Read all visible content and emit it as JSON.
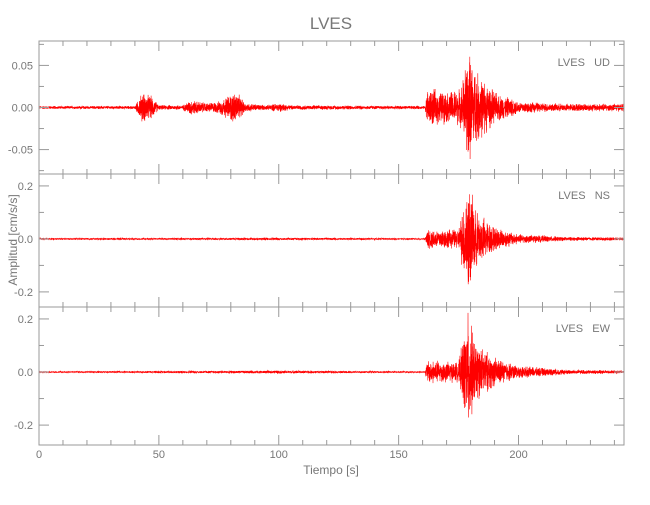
{
  "chart_data": {
    "type": "line",
    "title": "LVES",
    "xlabel": "Tiempo [s]",
    "ylabel": "Amplitud [cm/s/s]",
    "xlim": [
      0,
      244
    ],
    "xticks": [
      0,
      50,
      100,
      150,
      200
    ],
    "xtick_labels": [
      "0",
      "50",
      "100",
      "150",
      "200"
    ],
    "grid": false,
    "line_color": "#ff0000",
    "panels": [
      {
        "label": "LVES   UD",
        "ylim": [
          -0.079,
          0.079
        ],
        "yticks": [
          -0.05,
          0.0,
          0.05
        ],
        "ytick_labels": [
          "-0.05",
          "0.00",
          "0.05"
        ],
        "minor_step": 0.025,
        "envelope": [
          [
            0,
            0.002
          ],
          [
            40,
            0.002
          ],
          [
            43,
            0.02
          ],
          [
            47,
            0.015
          ],
          [
            50,
            0.003
          ],
          [
            60,
            0.003
          ],
          [
            63,
            0.01
          ],
          [
            70,
            0.006
          ],
          [
            75,
            0.008
          ],
          [
            82,
            0.022
          ],
          [
            86,
            0.006
          ],
          [
            95,
            0.003
          ],
          [
            100,
            0.006
          ],
          [
            105,
            0.003
          ],
          [
            161,
            0.002
          ],
          [
            162,
            0.025
          ],
          [
            170,
            0.02
          ],
          [
            176,
            0.025
          ],
          [
            179,
            0.075
          ],
          [
            182,
            0.05
          ],
          [
            190,
            0.02
          ],
          [
            200,
            0.008
          ],
          [
            215,
            0.005
          ],
          [
            244,
            0.005
          ]
        ]
      },
      {
        "label": "LVES   NS",
        "ylim": [
          -0.257,
          0.245
        ],
        "yticks": [
          -0.2,
          0.0,
          0.2
        ],
        "ytick_labels": [
          "-0.2",
          "0.0",
          "0.2"
        ],
        "minor_step": 0.1,
        "envelope": [
          [
            0,
            0.003
          ],
          [
            100,
            0.005
          ],
          [
            161,
            0.003
          ],
          [
            162,
            0.04
          ],
          [
            175,
            0.04
          ],
          [
            179,
            0.24
          ],
          [
            182,
            0.12
          ],
          [
            190,
            0.05
          ],
          [
            200,
            0.02
          ],
          [
            220,
            0.008
          ],
          [
            244,
            0.006
          ]
        ]
      },
      {
        "label": "LVES   EW",
        "ylim": [
          -0.275,
          0.245
        ],
        "yticks": [
          -0.2,
          0.0,
          0.2
        ],
        "ytick_labels": [
          "-0.2",
          "0.0",
          "0.2"
        ],
        "minor_step": 0.1,
        "envelope": [
          [
            0,
            0.003
          ],
          [
            100,
            0.006
          ],
          [
            161,
            0.003
          ],
          [
            162,
            0.05
          ],
          [
            175,
            0.04
          ],
          [
            179,
            0.25
          ],
          [
            182,
            0.12
          ],
          [
            190,
            0.06
          ],
          [
            200,
            0.025
          ],
          [
            220,
            0.01
          ],
          [
            244,
            0.006
          ]
        ]
      }
    ]
  }
}
